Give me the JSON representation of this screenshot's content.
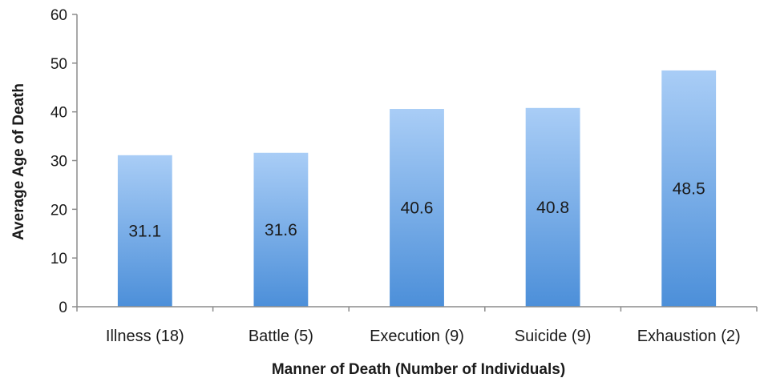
{
  "chart_data": {
    "type": "bar",
    "categories": [
      "Illness (18)",
      "Battle (5)",
      "Execution (9)",
      "Suicide (9)",
      "Exhaustion (2)"
    ],
    "values": [
      31.1,
      31.6,
      40.6,
      40.8,
      48.5
    ],
    "data_labels": [
      "31.1",
      "31.6",
      "40.6",
      "40.8",
      "48.5"
    ],
    "title": "",
    "xlabel": "Manner of Death (Number of Individuals)",
    "ylabel": "Average Age of Death",
    "ylim": [
      0,
      60
    ],
    "yticks": [
      0,
      10,
      20,
      30,
      40,
      50,
      60
    ],
    "grid": false,
    "legend": "none",
    "colors": {
      "bar_top": "#a9cdf6",
      "bar_bottom": "#4c8fd9",
      "axis": "#8c8c8c"
    }
  }
}
